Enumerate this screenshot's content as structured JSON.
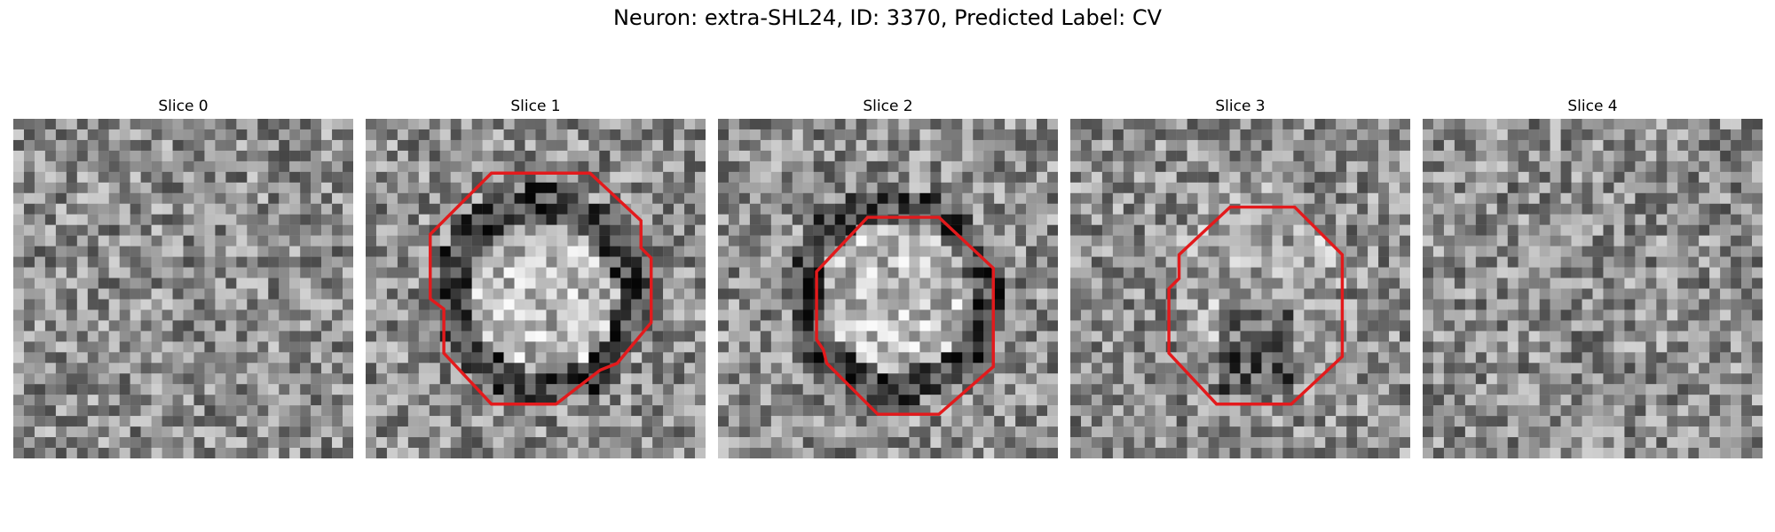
{
  "title": "Neuron: extra-SHL24, ID: 3370, Predicted Label: CV",
  "accent_color": "#e31a1c",
  "slices": [
    {
      "label": "Slice 0",
      "has_contour": false,
      "pattern": "noise",
      "seed": 11
    },
    {
      "label": "Slice 1",
      "has_contour": true,
      "pattern": "ring",
      "seed": 23,
      "contour": [
        [
          0.37,
          0.16
        ],
        [
          0.66,
          0.16
        ],
        [
          0.81,
          0.3
        ],
        [
          0.81,
          0.38
        ],
        [
          0.84,
          0.41
        ],
        [
          0.84,
          0.6
        ],
        [
          0.74,
          0.72
        ],
        [
          0.69,
          0.74
        ],
        [
          0.56,
          0.84
        ],
        [
          0.37,
          0.84
        ],
        [
          0.23,
          0.69
        ],
        [
          0.23,
          0.56
        ],
        [
          0.19,
          0.53
        ],
        [
          0.19,
          0.34
        ]
      ]
    },
    {
      "label": "Slice 2",
      "has_contour": true,
      "pattern": "ring",
      "seed": 37,
      "contour": [
        [
          0.44,
          0.29
        ],
        [
          0.65,
          0.29
        ],
        [
          0.81,
          0.44
        ],
        [
          0.81,
          0.73
        ],
        [
          0.65,
          0.87
        ],
        [
          0.47,
          0.87
        ],
        [
          0.32,
          0.72
        ],
        [
          0.31,
          0.68
        ],
        [
          0.29,
          0.65
        ],
        [
          0.29,
          0.45
        ]
      ]
    },
    {
      "label": "Slice 3",
      "has_contour": true,
      "pattern": "blob",
      "seed": 53,
      "contour": [
        [
          0.47,
          0.26
        ],
        [
          0.66,
          0.26
        ],
        [
          0.8,
          0.4
        ],
        [
          0.8,
          0.7
        ],
        [
          0.65,
          0.84
        ],
        [
          0.43,
          0.84
        ],
        [
          0.29,
          0.69
        ],
        [
          0.29,
          0.5
        ],
        [
          0.32,
          0.47
        ],
        [
          0.32,
          0.4
        ]
      ]
    },
    {
      "label": "Slice 4",
      "has_contour": false,
      "pattern": "noise",
      "seed": 71
    }
  ]
}
